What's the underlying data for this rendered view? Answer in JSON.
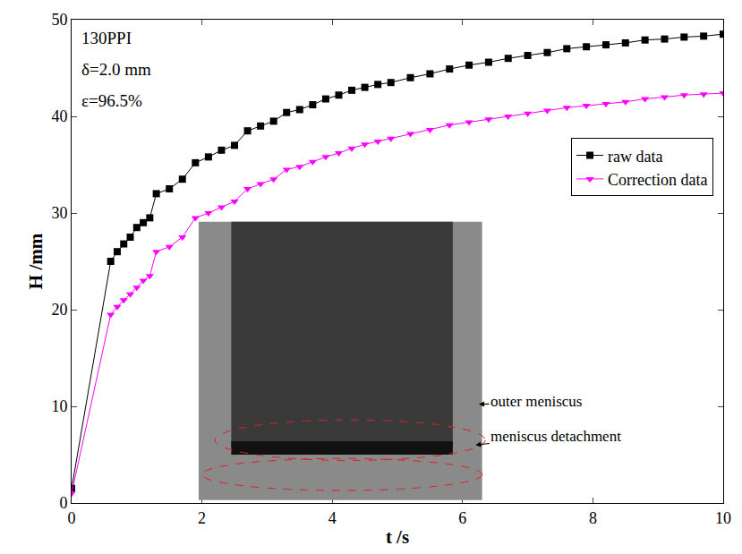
{
  "chart_data": {
    "type": "line",
    "xlabel": "t /s",
    "ylabel": "H /mm",
    "x": [
      0,
      0.6,
      0.7,
      0.8,
      0.9,
      1.0,
      1.1,
      1.2,
      1.3,
      1.5,
      1.7,
      1.9,
      2.1,
      2.3,
      2.5,
      2.7,
      2.9,
      3.1,
      3.3,
      3.5,
      3.7,
      3.9,
      4.1,
      4.3,
      4.5,
      4.7,
      4.9,
      5.2,
      5.5,
      5.8,
      6.1,
      6.4,
      6.7,
      7.0,
      7.3,
      7.6,
      7.9,
      8.2,
      8.5,
      8.8,
      9.1,
      9.4,
      9.7,
      10
    ],
    "series": [
      {
        "name": "raw data",
        "color": "#000000",
        "marker": "square",
        "line_style": "solid",
        "values": [
          1.5,
          25,
          26,
          26.8,
          27.5,
          28.5,
          29,
          29.5,
          32,
          32.5,
          33.5,
          35.2,
          35.8,
          36.5,
          37,
          38.5,
          39,
          39.5,
          40.4,
          40.7,
          41.2,
          41.8,
          42.2,
          42.7,
          43,
          43.3,
          43.5,
          44,
          44.4,
          44.9,
          45.3,
          45.6,
          46,
          46.3,
          46.6,
          47,
          47.2,
          47.4,
          47.6,
          47.9,
          48,
          48.2,
          48.3,
          48.5
        ]
      },
      {
        "name": "Correction data",
        "color": "#ff00ff",
        "marker": "triangle-down",
        "line_style": "solid",
        "values": [
          1,
          19.5,
          20.3,
          21,
          21.6,
          22.3,
          23,
          23.5,
          26,
          26.5,
          27.5,
          29.5,
          30,
          30.6,
          31.2,
          32.5,
          33,
          33.5,
          34.5,
          34.8,
          35.3,
          35.8,
          36.2,
          36.7,
          37.1,
          37.4,
          37.7,
          38.2,
          38.6,
          39.1,
          39.4,
          39.7,
          40,
          40.3,
          40.6,
          40.9,
          41.1,
          41.3,
          41.5,
          41.8,
          42,
          42.2,
          42.3,
          42.4
        ]
      }
    ],
    "xlim": [
      0,
      10
    ],
    "xticks": [
      0,
      2,
      4,
      6,
      8,
      10
    ],
    "ylim": [
      0,
      50
    ],
    "yticks": [
      0,
      10,
      20,
      30,
      40,
      50
    ],
    "grid": false,
    "legend": "upper right",
    "annotations": [
      "130PPI",
      "δ=2.0 mm",
      "ε=96.5%",
      "outer meniscus",
      "meniscus detachment"
    ]
  }
}
